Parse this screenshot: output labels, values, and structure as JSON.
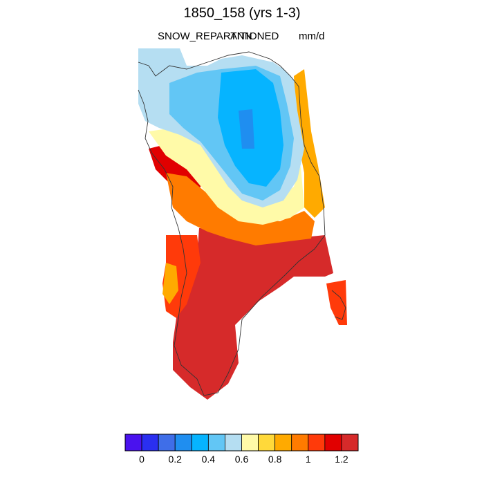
{
  "title": "1850_158 (yrs 1-3)",
  "variable": "SNOW_REPARTITIONED",
  "season": "ANN",
  "units": "mm/d",
  "colorbar": {
    "colors": [
      "#4a12ee",
      "#2a2ff0",
      "#3f6ee8",
      "#1f8ef0",
      "#06b4ff",
      "#62c6f5",
      "#b5def2",
      "#fffaa8",
      "#ffd93a",
      "#ffaa00",
      "#ff7b00",
      "#ff3a0a",
      "#e10000",
      "#d62a2a"
    ],
    "tick_labels": [
      "0",
      "0.2",
      "0.4",
      "0.6",
      "0.8",
      "1",
      "1.2"
    ]
  },
  "chart_data": {
    "type": "heatmap",
    "title": "1850_158 (yrs 1-3)",
    "field": "SNOW_REPARTITIONED",
    "period": "ANN",
    "units": "mm/d",
    "region": "Greenland",
    "scale_min": 0,
    "scale_max": 1.3,
    "level_step": 0.1,
    "pattern": "low values (0.3–0.6 mm/d) over the northern interior ice sheet, rising to >1.2 mm/d along the southern half and southeast coast"
  }
}
